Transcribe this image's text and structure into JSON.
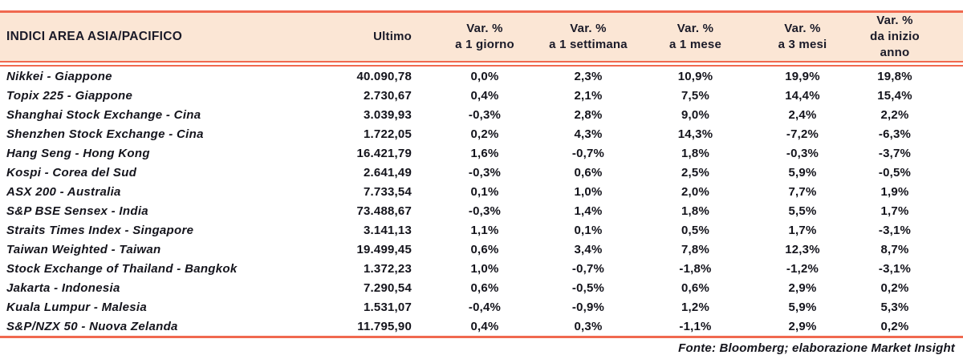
{
  "colors": {
    "accent_line": "#f0694f",
    "header_background": "#fbe6d5",
    "text": "#15151f"
  },
  "table": {
    "title": "INDICI AREA ASIA/PACIFICO",
    "columns": [
      {
        "line1": "Ultimo",
        "line2": ""
      },
      {
        "line1": "Var. %",
        "line2": "a 1 giorno"
      },
      {
        "line1": "Var. %",
        "line2": "a 1 settimana"
      },
      {
        "line1": "Var. %",
        "line2": "a 1 mese"
      },
      {
        "line1": "Var. %",
        "line2": "a 3 mesi"
      },
      {
        "line1": "Var. %",
        "line2": "da inizio anno"
      }
    ],
    "rows": [
      {
        "name": "Nikkei - Giappone",
        "values": [
          "40.090,78",
          "0,0%",
          "2,3%",
          "10,9%",
          "19,9%",
          "19,8%"
        ]
      },
      {
        "name": "Topix 225 - Giappone",
        "values": [
          "2.730,67",
          "0,4%",
          "2,1%",
          "7,5%",
          "14,4%",
          "15,4%"
        ]
      },
      {
        "name": "Shanghai Stock Exchange - Cina",
        "values": [
          "3.039,93",
          "-0,3%",
          "2,8%",
          "9,0%",
          "2,4%",
          "2,2%"
        ]
      },
      {
        "name": "Shenzhen Stock Exchange - Cina",
        "values": [
          "1.722,05",
          "0,2%",
          "4,3%",
          "14,3%",
          "-7,2%",
          "-6,3%"
        ]
      },
      {
        "name": "Hang Seng - Hong Kong",
        "values": [
          "16.421,79",
          "1,6%",
          "-0,7%",
          "1,8%",
          "-0,3%",
          "-3,7%"
        ]
      },
      {
        "name": "Kospi - Corea del Sud",
        "values": [
          "2.641,49",
          "-0,3%",
          "0,6%",
          "2,5%",
          "5,9%",
          "-0,5%"
        ]
      },
      {
        "name": "ASX 200 - Australia",
        "values": [
          "7.733,54",
          "0,1%",
          "1,0%",
          "2,0%",
          "7,7%",
          "1,9%"
        ]
      },
      {
        "name": "S&P BSE Sensex - India",
        "values": [
          "73.488,67",
          "-0,3%",
          "1,4%",
          "1,8%",
          "5,5%",
          "1,7%"
        ]
      },
      {
        "name": "Straits Times Index - Singapore",
        "values": [
          "3.141,13",
          "1,1%",
          "0,1%",
          "0,5%",
          "1,7%",
          "-3,1%"
        ]
      },
      {
        "name": "Taiwan Weighted - Taiwan",
        "values": [
          "19.499,45",
          "0,6%",
          "3,4%",
          "7,8%",
          "12,3%",
          "8,7%"
        ]
      },
      {
        "name": "Stock Exchange of Thailand - Bangkok",
        "values": [
          "1.372,23",
          "1,0%",
          "-0,7%",
          "-1,8%",
          "-1,2%",
          "-3,1%"
        ]
      },
      {
        "name": "Jakarta - Indonesia",
        "values": [
          "7.290,54",
          "0,6%",
          "-0,5%",
          "0,6%",
          "2,9%",
          "0,2%"
        ]
      },
      {
        "name": "Kuala Lumpur - Malesia",
        "values": [
          "1.531,07",
          "-0,4%",
          "-0,9%",
          "1,2%",
          "5,9%",
          "5,3%"
        ]
      },
      {
        "name": "S&P/NZX 50 - Nuova Zelanda",
        "values": [
          "11.795,90",
          "0,4%",
          "0,3%",
          "-1,1%",
          "2,9%",
          "0,2%"
        ]
      }
    ]
  },
  "footer": {
    "source": "Fonte: Bloomberg; elaborazione Market Insight"
  }
}
